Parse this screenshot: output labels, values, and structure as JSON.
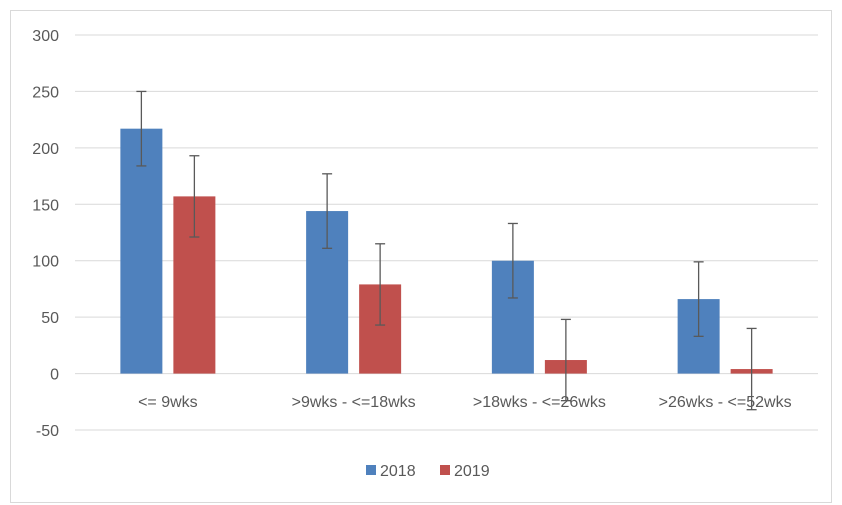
{
  "chart_data": {
    "type": "bar",
    "categories": [
      "<= 9wks",
      ">9wks - <=18wks",
      ">18wks - <=26wks",
      ">26wks - <=52wks"
    ],
    "series": [
      {
        "name": "2018",
        "color": "#4f81bd",
        "values": [
          217,
          144,
          100,
          66
        ],
        "error": [
          33,
          33,
          33,
          33
        ]
      },
      {
        "name": "2019",
        "color": "#c0504d",
        "values": [
          157,
          79,
          12,
          4
        ],
        "error": [
          36,
          36,
          36,
          36
        ]
      }
    ],
    "ylim": [
      -50,
      300
    ],
    "yticks": [
      300,
      250,
      200,
      150,
      100,
      50,
      0,
      -50
    ],
    "grid": true,
    "legend": "bottom",
    "gridline_color": "#d9d9d9",
    "errorbar_color": "#595959"
  }
}
